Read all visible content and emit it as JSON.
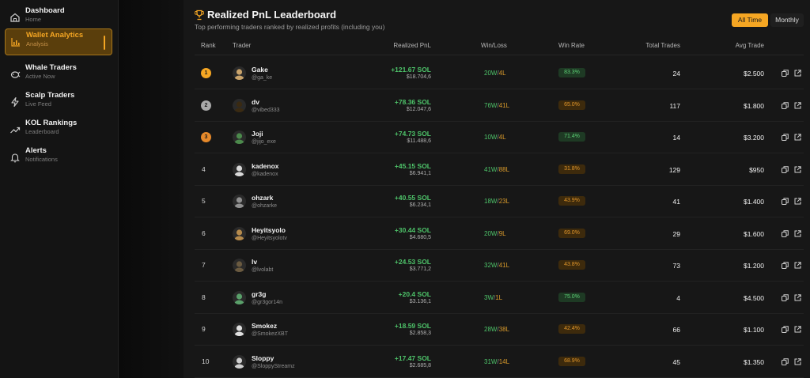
{
  "sidebar": {
    "items": [
      {
        "label": "Dashboard",
        "sub": "Home",
        "icon": "home-icon"
      },
      {
        "label": "Wallet Analytics",
        "sub": "Analysis",
        "icon": "bar-chart-icon",
        "active": true
      },
      {
        "label": "Whale Traders",
        "sub": "Active Now",
        "icon": "whale-icon"
      },
      {
        "label": "Scalp Traders",
        "sub": "Live Feed",
        "icon": "lightning-icon"
      },
      {
        "label": "KOL Rankings",
        "sub": "Leaderboard",
        "icon": "trending-up-icon"
      },
      {
        "label": "Alerts",
        "sub": "Notifications",
        "icon": "bell-icon"
      }
    ]
  },
  "header": {
    "title": "Realized PnL Leaderboard",
    "subtitle": "Top performing traders ranked by realized profits (including you)",
    "filters": {
      "all_time": "All Time",
      "monthly": "Monthly"
    }
  },
  "columns": {
    "rank": "Rank",
    "trader": "Trader",
    "pnl": "Realized PnL",
    "winloss": "Win/Loss",
    "winrate": "Win Rate",
    "trades": "Total Trades",
    "avg": "Avg Trade"
  },
  "colors": {
    "accent": "#f5a623",
    "positive": "#4ec46a",
    "gold": "#f5a623",
    "silver": "#a8a8a8",
    "bronze": "#e6892a"
  },
  "rows": [
    {
      "rank": "1",
      "name": "Gake",
      "handle": "@ga_ke",
      "pnl": "+121.67 SOL",
      "usd": "$18.704,6",
      "wins": "20W",
      "losses": "4L",
      "winrate": "83.3%",
      "trades": "24",
      "avg": "$2.500"
    },
    {
      "rank": "2",
      "name": "dv",
      "handle": "@vibed333",
      "pnl": "+78.36 SOL",
      "usd": "$12.047,6",
      "wins": "76W",
      "losses": "41L",
      "winrate": "65.0%",
      "trades": "117",
      "avg": "$1.800"
    },
    {
      "rank": "3",
      "name": "Joji",
      "handle": "@jijo_exe",
      "pnl": "+74.73 SOL",
      "usd": "$11.488,6",
      "wins": "10W",
      "losses": "4L",
      "winrate": "71.4%",
      "trades": "14",
      "avg": "$3.200"
    },
    {
      "rank": "4",
      "name": "kadenox",
      "handle": "@kadenox",
      "pnl": "+45.15 SOL",
      "usd": "$6.941,1",
      "wins": "41W",
      "losses": "88L",
      "winrate": "31.8%",
      "trades": "129",
      "avg": "$950"
    },
    {
      "rank": "5",
      "name": "ohzark",
      "handle": "@ohzarke",
      "pnl": "+40.55 SOL",
      "usd": "$6.234,1",
      "wins": "18W",
      "losses": "23L",
      "winrate": "43.9%",
      "trades": "41",
      "avg": "$1.400"
    },
    {
      "rank": "6",
      "name": "Heyitsyolo",
      "handle": "@Heyitsyolotv",
      "pnl": "+30.44 SOL",
      "usd": "$4.680,5",
      "wins": "20W",
      "losses": "9L",
      "winrate": "69.0%",
      "trades": "29",
      "avg": "$1.600"
    },
    {
      "rank": "7",
      "name": "lv",
      "handle": "@lvolabt",
      "pnl": "+24.53 SOL",
      "usd": "$3.771,2",
      "wins": "32W",
      "losses": "41L",
      "winrate": "43.8%",
      "trades": "73",
      "avg": "$1.200"
    },
    {
      "rank": "8",
      "name": "gr3g",
      "handle": "@gr3gor14n",
      "pnl": "+20.4 SOL",
      "usd": "$3.136,1",
      "wins": "3W",
      "losses": "1L",
      "winrate": "75.0%",
      "trades": "4",
      "avg": "$4.500"
    },
    {
      "rank": "9",
      "name": "Smokez",
      "handle": "@SmokezXBT",
      "pnl": "+18.59 SOL",
      "usd": "$2.858,3",
      "wins": "28W",
      "losses": "38L",
      "winrate": "42.4%",
      "trades": "66",
      "avg": "$1.100"
    },
    {
      "rank": "10",
      "name": "Sloppy",
      "handle": "@SloppyStreamz",
      "pnl": "+17.47 SOL",
      "usd": "$2.685,8",
      "wins": "31W",
      "losses": "14L",
      "winrate": "68.9%",
      "trades": "45",
      "avg": "$1.350"
    }
  ]
}
